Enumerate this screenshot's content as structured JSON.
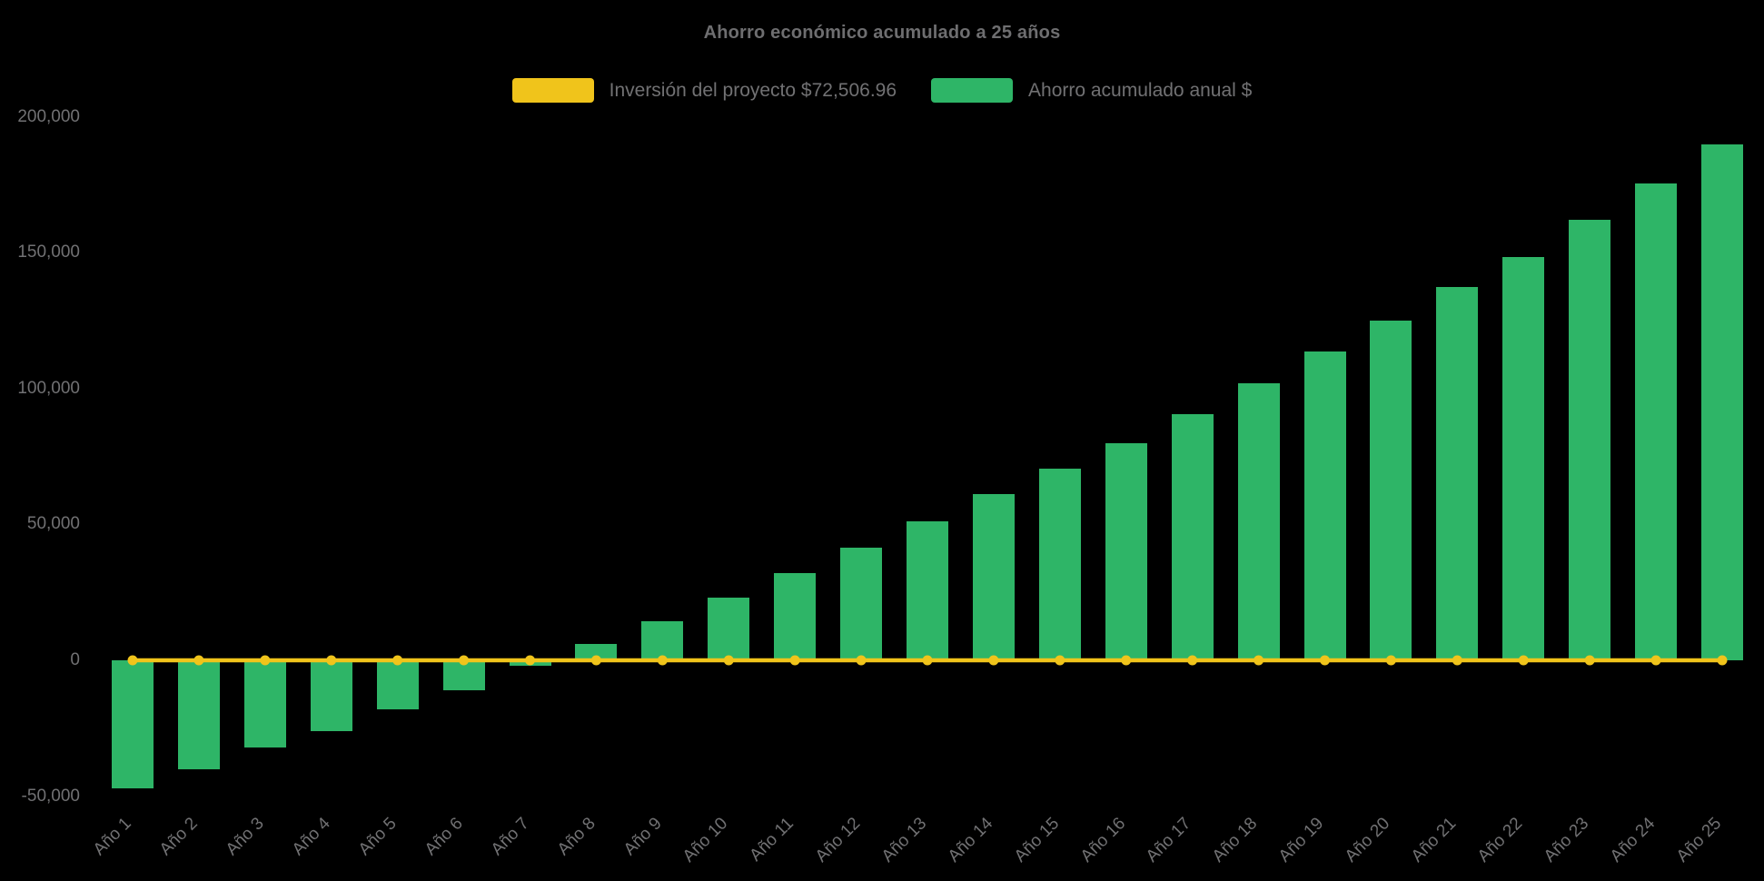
{
  "chart_data": {
    "type": "bar",
    "title": "Ahorro económico acumulado a 25 años",
    "categories": [
      "Año 1",
      "Año 2",
      "Año 3",
      "Año 4",
      "Año 5",
      "Año 6",
      "Año 7",
      "Año 8",
      "Año 9",
      "Año 10",
      "Año 11",
      "Año 12",
      "Año 13",
      "Año 14",
      "Año 15",
      "Año 16",
      "Año 17",
      "Año 18",
      "Año 19",
      "Año 20",
      "Año 21",
      "Año 22",
      "Año 23",
      "Año 24",
      "Año 25"
    ],
    "series": [
      {
        "name": "Inversión del proyecto $72,506.96",
        "type": "line",
        "color": "#f0c41b",
        "values": [
          0,
          0,
          0,
          0,
          0,
          0,
          0,
          0,
          0,
          0,
          0,
          0,
          0,
          0,
          0,
          0,
          0,
          0,
          0,
          0,
          0,
          0,
          0,
          0,
          0
        ]
      },
      {
        "name": "Ahorro acumulado anual $",
        "type": "bar",
        "color": "#2eb567",
        "values": [
          -47000,
          -40000,
          -32000,
          -26000,
          -18000,
          -11000,
          -2000,
          6000,
          14500,
          23000,
          32000,
          41500,
          51000,
          61000,
          70500,
          80000,
          90500,
          102000,
          113500,
          125000,
          137500,
          148500,
          162000,
          175500,
          190000
        ]
      }
    ],
    "ylim": [
      -50000,
      200000
    ],
    "yticks": [
      200000,
      150000,
      100000,
      50000,
      0,
      -50000
    ],
    "ytick_labels": [
      "200,000",
      "150,000",
      "100,000",
      "50,000",
      "0",
      "-50,000"
    ],
    "grid": false,
    "legend_position": "top",
    "x_label_rotation": -45,
    "background_color": "#000000",
    "text_color": "#717173"
  }
}
